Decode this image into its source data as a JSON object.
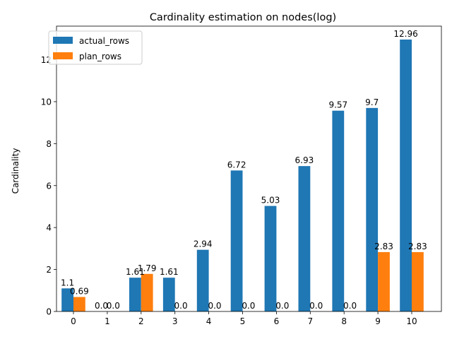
{
  "chart_data": {
    "type": "bar",
    "title": "Cardinality estimation on nodes(log)",
    "xlabel": "",
    "ylabel": "Cardinality",
    "categories": [
      "0",
      "1",
      "2",
      "3",
      "4",
      "5",
      "6",
      "7",
      "8",
      "9",
      "10"
    ],
    "series": [
      {
        "name": "actual_rows",
        "color": "#1f77b4",
        "values": [
          1.1,
          0.0,
          1.61,
          1.61,
          2.94,
          6.72,
          5.03,
          6.93,
          9.57,
          9.7,
          12.96
        ],
        "labels": [
          "1.1",
          "0.0",
          "1.61",
          "1.61",
          "2.94",
          "6.72",
          "5.03",
          "6.93",
          "9.57",
          "9.7",
          "12.96"
        ]
      },
      {
        "name": "plan_rows",
        "color": "#ff7f0e",
        "values": [
          0.69,
          0.0,
          1.79,
          0.0,
          0.0,
          0.0,
          0.0,
          0.0,
          0.0,
          2.83,
          2.83
        ],
        "labels": [
          "0.69",
          "0.0",
          "1.79",
          "0.0",
          "0.0",
          "0.0",
          "0.0",
          "0.0",
          "0.0",
          "2.83",
          "2.83"
        ]
      }
    ],
    "ylim": [
      0,
      13.6
    ],
    "yticks": [
      0,
      2,
      4,
      6,
      8,
      10,
      12
    ],
    "grid": false,
    "legend_position": "top-left"
  }
}
